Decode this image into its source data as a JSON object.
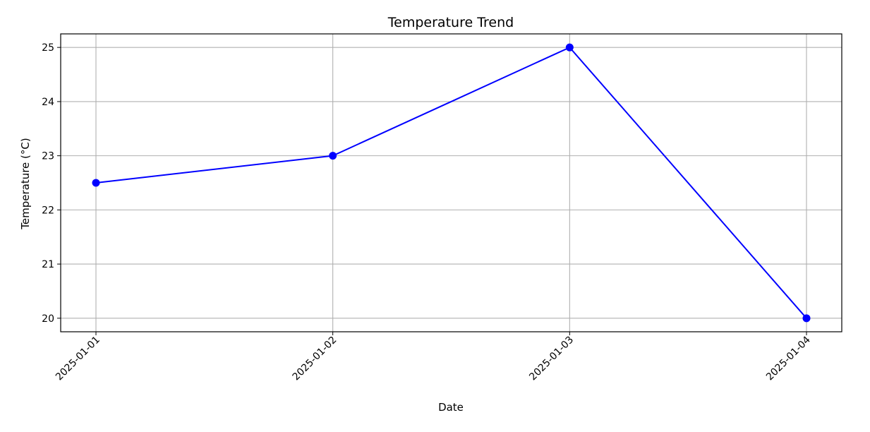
{
  "chart_data": {
    "type": "line",
    "title": "Temperature Trend",
    "xlabel": "Date",
    "ylabel": "Temperature (°C)",
    "categories": [
      "2025-01-01",
      "2025-01-02",
      "2025-01-03",
      "2025-01-04"
    ],
    "series": [
      {
        "values": [
          22.5,
          23.0,
          25.0,
          20.0
        ],
        "color": "#0000ff",
        "marker": "circle"
      }
    ],
    "ylim": [
      19.75,
      25.25
    ],
    "yticks": [
      "20",
      "21",
      "22",
      "23",
      "24",
      "25"
    ],
    "grid": true,
    "xtick_rotation_deg": 45
  }
}
